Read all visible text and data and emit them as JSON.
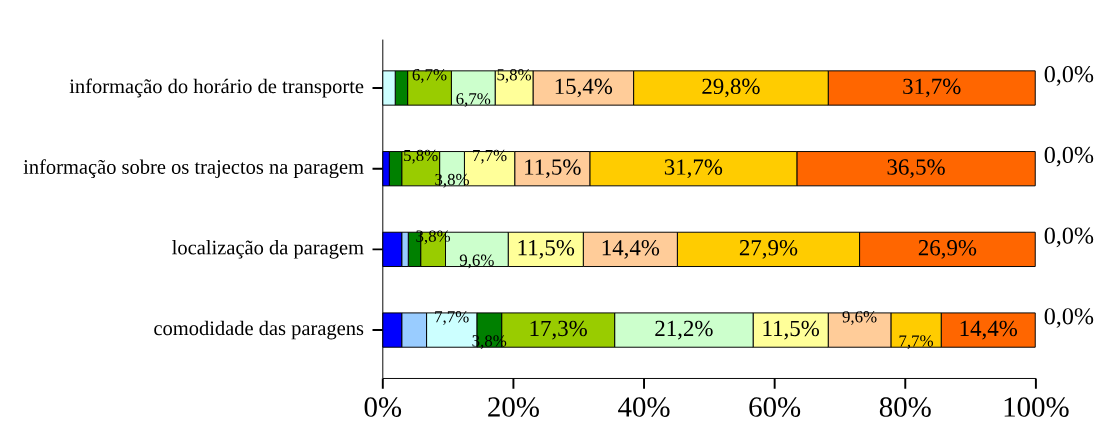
{
  "chart_data": {
    "type": "bar",
    "orientation": "horizontal",
    "stacked": true,
    "categories": [
      "informação do horário de transporte",
      "informação sobre os trajectos na paragem",
      "localização da paragem",
      "comodidade das paragens"
    ],
    "series": [
      {
        "color": "#0000ff",
        "values": [
          0,
          1.0,
          2.9,
          2.9
        ],
        "value_labels": [
          null,
          null,
          null,
          null
        ]
      },
      {
        "color": "#99ccff",
        "values": [
          0,
          0,
          1.0,
          3.8
        ],
        "value_labels": [
          null,
          null,
          null,
          null
        ]
      },
      {
        "color": "#ccffff",
        "values": [
          1.9,
          0,
          0,
          7.7
        ],
        "value_labels": [
          null,
          null,
          null,
          "7,7%"
        ]
      },
      {
        "color": "#008000",
        "values": [
          1.9,
          1.9,
          1.9,
          3.8
        ],
        "value_labels": [
          null,
          null,
          null,
          "3,8%"
        ]
      },
      {
        "color": "#99cc00",
        "values": [
          6.7,
          5.8,
          3.8,
          17.3
        ],
        "value_labels": [
          "6,7%",
          "5,8%",
          "3,8%",
          "17,3%"
        ]
      },
      {
        "color": "#ccffcc",
        "values": [
          6.7,
          3.8,
          9.6,
          21.2
        ],
        "value_labels": [
          "6,7%",
          "3,8%",
          "9,6%",
          "21,2%"
        ]
      },
      {
        "color": "#ffff99",
        "values": [
          5.8,
          7.7,
          11.5,
          11.5
        ],
        "value_labels": [
          "5,8%",
          "7,7%",
          "11,5%",
          "11,5%"
        ]
      },
      {
        "color": "#ffcc99",
        "values": [
          15.4,
          11.5,
          14.4,
          9.6
        ],
        "value_labels": [
          "15,4%",
          "11,5%",
          "14,4%",
          "9,6%"
        ]
      },
      {
        "color": "#ffcc00",
        "values": [
          29.8,
          31.7,
          27.9,
          7.7
        ],
        "value_labels": [
          "29,8%",
          "31,7%",
          "27,9%",
          "7,7%"
        ]
      },
      {
        "color": "#ff6600",
        "values": [
          31.7,
          36.5,
          26.9,
          14.4
        ],
        "value_labels": [
          "31,7%",
          "36,5%",
          "26,9%",
          "14,4%"
        ]
      },
      {
        "color": "#c0c0c0",
        "values": [
          0,
          0,
          0,
          0
        ],
        "value_labels": [
          "0,0%",
          "0,0%",
          "0,0%",
          "0,0%"
        ]
      }
    ],
    "xlim": [
      0,
      100
    ],
    "xticks": [
      {
        "value": 0,
        "label": "0%"
      },
      {
        "value": 20,
        "label": "20%"
      },
      {
        "value": 40,
        "label": "40%"
      },
      {
        "value": 60,
        "label": "60%"
      },
      {
        "value": 80,
        "label": "80%"
      },
      {
        "value": 100,
        "label": "100%"
      }
    ],
    "grid": false
  }
}
